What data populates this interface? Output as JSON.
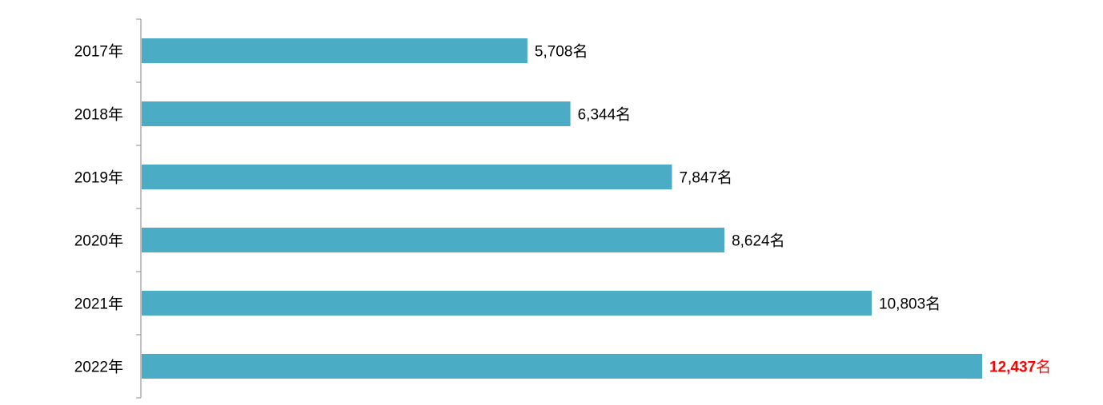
{
  "chart_data": {
    "type": "bar",
    "orientation": "horizontal",
    "categories": [
      "2017年",
      "2018年",
      "2019年",
      "2020年",
      "2021年",
      "2022年"
    ],
    "values": [
      5708,
      6344,
      7847,
      8624,
      10803,
      12437
    ],
    "value_labels": [
      "5,708",
      "6,344",
      "7,847",
      "8,624",
      "10,803",
      "12,437"
    ],
    "unit": "名",
    "bar_color": "#4bacc6",
    "highlight_color": "#ff0000",
    "highlight_index": 5,
    "title": "",
    "xlabel": "",
    "ylabel": "",
    "xlim": [
      0,
      12437
    ],
    "grid": false,
    "legend": "none"
  }
}
